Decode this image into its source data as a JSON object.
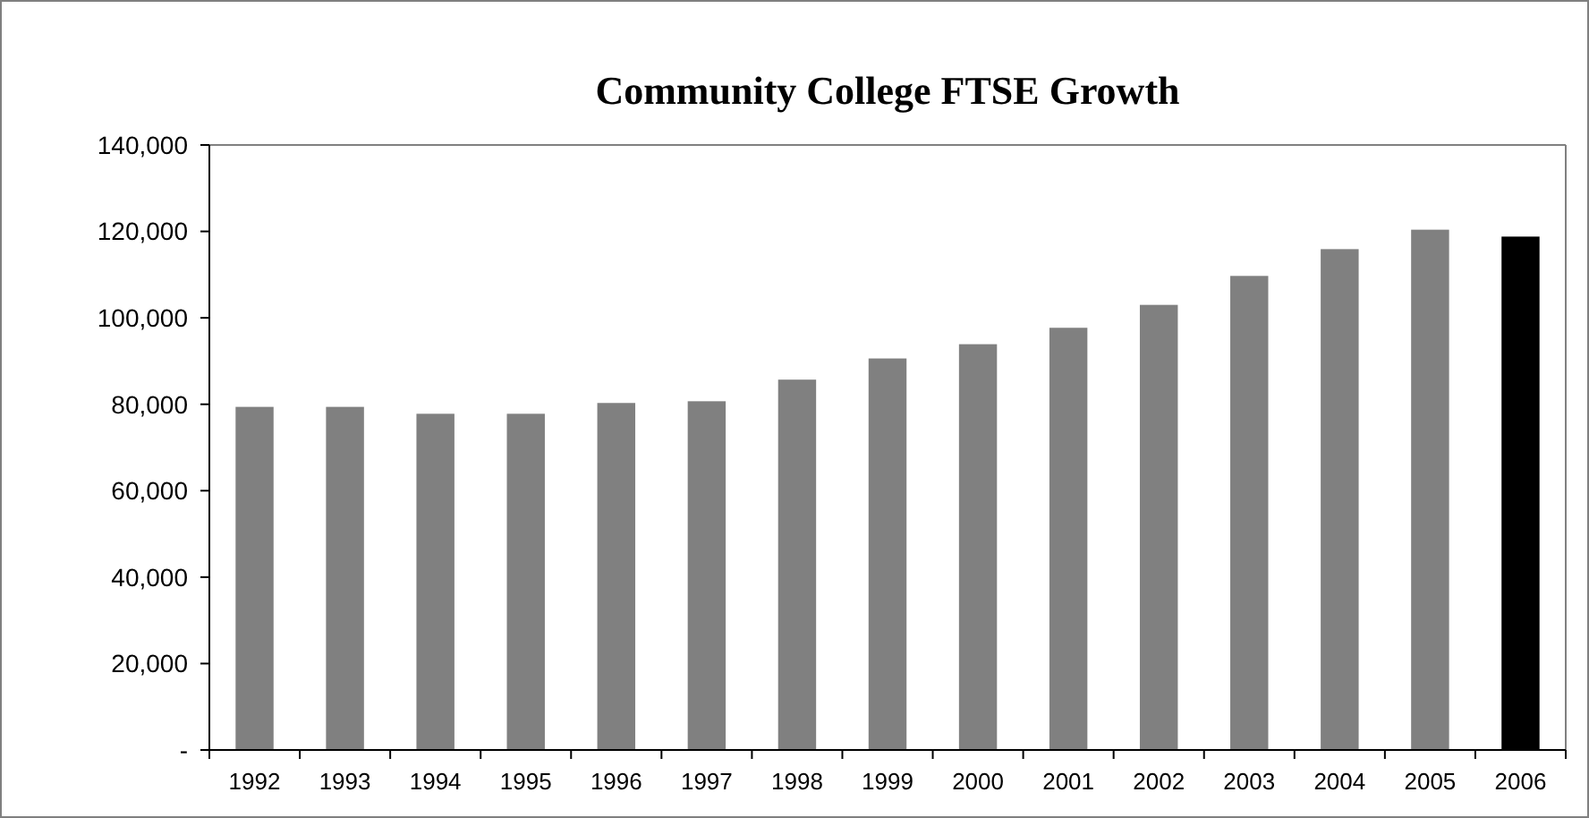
{
  "chart_data": {
    "type": "bar",
    "title": "Community College FTSE Growth",
    "categories": [
      "1992",
      "1993",
      "1994",
      "1995",
      "1996",
      "1997",
      "1998",
      "1999",
      "2000",
      "2001",
      "2002",
      "2003",
      "2004",
      "2005",
      "2006"
    ],
    "values": [
      79400,
      79400,
      77800,
      77800,
      80300,
      80700,
      85700,
      90600,
      93900,
      97700,
      103000,
      109700,
      115900,
      120400,
      118800
    ],
    "colors": [
      "#808080",
      "#808080",
      "#808080",
      "#808080",
      "#808080",
      "#808080",
      "#808080",
      "#808080",
      "#808080",
      "#808080",
      "#808080",
      "#808080",
      "#808080",
      "#808080",
      "#000000"
    ],
    "ylim": [
      0,
      140000
    ],
    "yticks": [
      {
        "value": 0,
        "label": "-"
      },
      {
        "value": 20000,
        "label": "20,000"
      },
      {
        "value": 40000,
        "label": "40,000"
      },
      {
        "value": 60000,
        "label": "60,000"
      },
      {
        "value": 80000,
        "label": "80,000"
      },
      {
        "value": 100000,
        "label": "100,000"
      },
      {
        "value": 120000,
        "label": "120,000"
      },
      {
        "value": 140000,
        "label": "140,000"
      }
    ]
  }
}
